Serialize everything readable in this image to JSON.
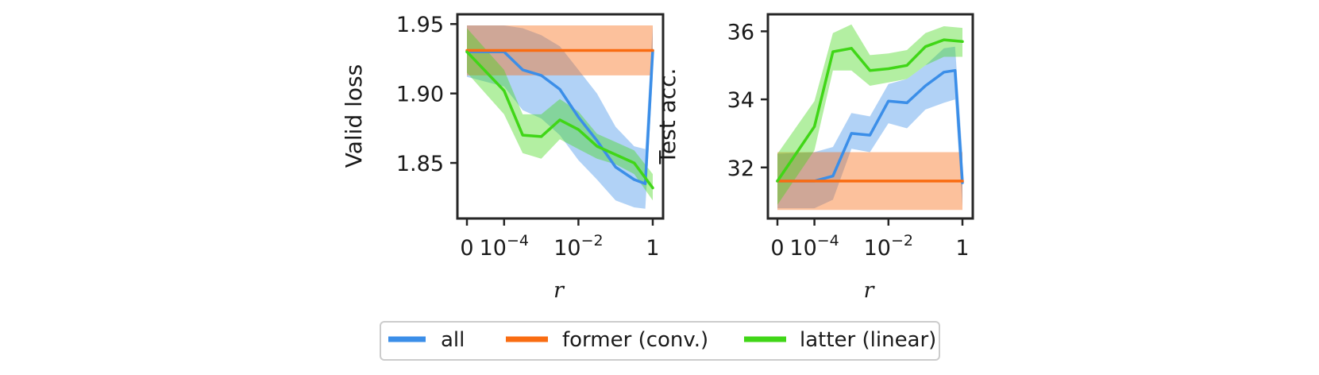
{
  "chart_data": [
    {
      "type": "line",
      "ylabel": "Valid loss",
      "xlabel": "r",
      "xticks": [
        "0",
        "10^-4",
        "10^-2",
        "1"
      ],
      "yticks": [
        "1.85",
        "1.90",
        "1.95"
      ],
      "ylim": [
        1.81,
        1.957
      ],
      "series": [
        {
          "name": "all",
          "color": "#3b8ee8",
          "x": [
            0,
            1,
            1.5,
            2,
            2.5,
            3,
            3.5,
            4,
            4.5,
            4.8,
            5
          ],
          "values": [
            1.93,
            1.93,
            1.917,
            1.913,
            1.903,
            1.883,
            1.866,
            1.847,
            1.838,
            1.835,
            1.931
          ],
          "lower": [
            1.912,
            1.905,
            1.888,
            1.882,
            1.87,
            1.852,
            1.838,
            1.823,
            1.818,
            1.817,
            1.912
          ],
          "upper": [
            1.949,
            1.949,
            1.947,
            1.942,
            1.934,
            1.917,
            1.9,
            1.876,
            1.862,
            1.86,
            1.949
          ]
        },
        {
          "name": "former (conv.)",
          "color": "#f96c12",
          "x": [
            0,
            5
          ],
          "values": [
            1.931,
            1.931
          ],
          "lower": [
            1.913,
            1.913
          ],
          "upper": [
            1.949,
            1.949
          ]
        },
        {
          "name": "latter (linear)",
          "color": "#40d617",
          "x": [
            0,
            1,
            1.5,
            2,
            2.5,
            3,
            3.5,
            4,
            4.5,
            5
          ],
          "values": [
            1.93,
            1.902,
            1.87,
            1.869,
            1.881,
            1.874,
            1.862,
            1.856,
            1.85,
            1.832
          ],
          "lower": [
            1.915,
            1.885,
            1.857,
            1.853,
            1.867,
            1.86,
            1.853,
            1.849,
            1.842,
            1.823
          ],
          "upper": [
            1.947,
            1.917,
            1.885,
            1.885,
            1.896,
            1.887,
            1.871,
            1.865,
            1.859,
            1.842
          ]
        }
      ]
    },
    {
      "type": "line",
      "ylabel": "Test acc.",
      "xlabel": "r",
      "xticks": [
        "0",
        "10^-4",
        "10^-2",
        "1"
      ],
      "yticks": [
        "32",
        "34",
        "36"
      ],
      "ylim": [
        30.5,
        36.5
      ],
      "series": [
        {
          "name": "all",
          "color": "#3b8ee8",
          "x": [
            0,
            1,
            1.5,
            2,
            2.5,
            3,
            3.5,
            4,
            4.5,
            4.8,
            5
          ],
          "values": [
            31.6,
            31.6,
            31.75,
            33.0,
            32.95,
            33.95,
            33.9,
            34.4,
            34.8,
            34.85,
            31.55
          ],
          "lower": [
            30.8,
            30.8,
            31.05,
            32.55,
            32.45,
            33.3,
            33.15,
            33.7,
            33.9,
            34.0,
            30.85
          ],
          "upper": [
            32.4,
            32.45,
            32.6,
            33.6,
            33.5,
            34.45,
            34.6,
            35.0,
            35.5,
            35.55,
            32.4
          ]
        },
        {
          "name": "former (conv.)",
          "color": "#f96c12",
          "x": [
            0,
            5
          ],
          "values": [
            31.6,
            31.6
          ],
          "lower": [
            30.75,
            30.75
          ],
          "upper": [
            32.45,
            32.45
          ]
        },
        {
          "name": "latter (linear)",
          "color": "#40d617",
          "x": [
            0,
            1,
            1.5,
            2,
            2.5,
            3,
            3.5,
            4,
            4.5,
            5
          ],
          "values": [
            31.6,
            33.2,
            35.4,
            35.5,
            34.85,
            34.9,
            35.0,
            35.55,
            35.75,
            35.7
          ],
          "lower": [
            30.9,
            32.5,
            34.85,
            34.85,
            34.4,
            34.5,
            34.6,
            35.0,
            35.25,
            35.25
          ],
          "upper": [
            32.4,
            33.95,
            35.95,
            36.2,
            35.3,
            35.35,
            35.45,
            35.95,
            36.15,
            36.1
          ]
        }
      ]
    }
  ],
  "legend": {
    "items": [
      {
        "label": "all",
        "color": "#3b8ee8"
      },
      {
        "label": "former (conv.)",
        "color": "#f96c12"
      },
      {
        "label": "latter (linear)",
        "color": "#40d617"
      }
    ]
  }
}
